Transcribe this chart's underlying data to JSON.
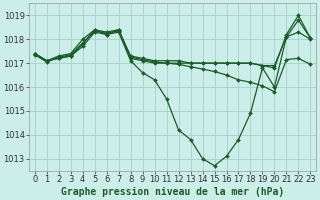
{
  "title": "Graphe pression niveau de la mer (hPa)",
  "background_color": "#cceee8",
  "grid_color": "#aad4ce",
  "line_color": "#1a5c2a",
  "marker_color": "#1a5c2a",
  "xlim": [
    -0.5,
    23.5
  ],
  "ylim": [
    1012.5,
    1019.5
  ],
  "yticks": [
    1013,
    1014,
    1015,
    1016,
    1017,
    1018,
    1019
  ],
  "xticks": [
    0,
    1,
    2,
    3,
    4,
    5,
    6,
    7,
    8,
    9,
    10,
    11,
    12,
    13,
    14,
    15,
    16,
    17,
    18,
    19,
    20,
    21,
    22,
    23
  ],
  "series": [
    [
      1017.4,
      1017.1,
      1017.2,
      1017.3,
      1017.7,
      1018.3,
      1018.2,
      1018.3,
      1017.1,
      1016.6,
      1016.3,
      1015.5,
      1014.2,
      1013.8,
      1013.0,
      1012.7,
      1013.1,
      1013.8,
      1014.9,
      1016.8,
      1016.0,
      1018.1,
      1018.3,
      1018.0
    ],
    [
      1017.4,
      1017.1,
      1017.2,
      1017.3,
      1017.8,
      1018.4,
      1018.2,
      1018.4,
      1017.2,
      1017.1,
      1017.0,
      1017.0,
      1017.0,
      1017.0,
      1017.0,
      1017.0,
      1017.0,
      1017.0,
      1017.0,
      1016.9,
      1016.9,
      1018.1,
      1018.8,
      1018.05
    ],
    [
      1017.4,
      1017.1,
      1017.3,
      1017.4,
      1018.0,
      1018.4,
      1018.3,
      1018.4,
      1017.3,
      1017.2,
      1017.1,
      1017.1,
      1017.1,
      1017.0,
      1017.0,
      1017.0,
      1017.0,
      1017.0,
      1017.0,
      1016.9,
      1016.8,
      1018.2,
      1019.0,
      1018.05
    ],
    [
      1017.35,
      1017.05,
      1017.25,
      1017.35,
      1017.85,
      1018.35,
      1018.25,
      1018.35,
      1017.25,
      1017.15,
      1017.05,
      1017.0,
      1016.95,
      1016.85,
      1016.75,
      1016.65,
      1016.5,
      1016.3,
      1016.2,
      1016.05,
      1015.8,
      1017.15,
      1017.2,
      1016.95
    ]
  ],
  "tick_fontsize": 6,
  "xlabel_fontsize": 7,
  "xlabel_fontweight": "bold"
}
